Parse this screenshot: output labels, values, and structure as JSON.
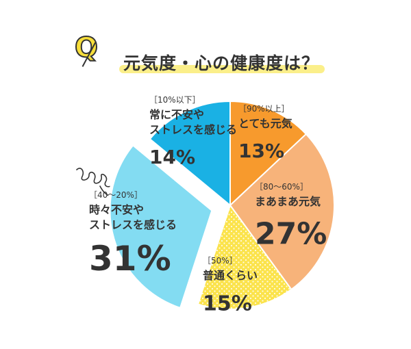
{
  "title": "元気度・心の健康度は？",
  "badge": "Q",
  "colors": {
    "badge": "#f7de3a",
    "text": "#333333"
  },
  "chart_data": {
    "type": "pie",
    "title": "元気度・心の健康度は？",
    "start_angle_deg": 0,
    "direction": "clockwise",
    "slices": [
      {
        "range": "［90%以上］",
        "label_lines": [
          "とても元気"
        ],
        "value": 13,
        "display": "13%",
        "color": "#f79a2d",
        "exploded": false
      },
      {
        "range": "［80～60%］",
        "label_lines": [
          "まあまあ元気"
        ],
        "value": 27,
        "display": "27%",
        "color": "#f7b37a",
        "exploded": false
      },
      {
        "range": "［50%］",
        "label_lines": [
          "普通くらい"
        ],
        "value": 15,
        "display": "15%",
        "color": "#fbe34c",
        "exploded": false,
        "pattern": "dots"
      },
      {
        "range": "［40～20%］",
        "label_lines": [
          "時々不安や",
          "ストレスを感じる"
        ],
        "value": 31,
        "display": "31%",
        "color": "#83dcf2",
        "exploded": true
      },
      {
        "range": "［10%以下］",
        "label_lines": [
          "常に不安や",
          "ストレスを感じる"
        ],
        "value": 14,
        "display": "14%",
        "color": "#1ab1e4",
        "exploded": false
      }
    ]
  }
}
